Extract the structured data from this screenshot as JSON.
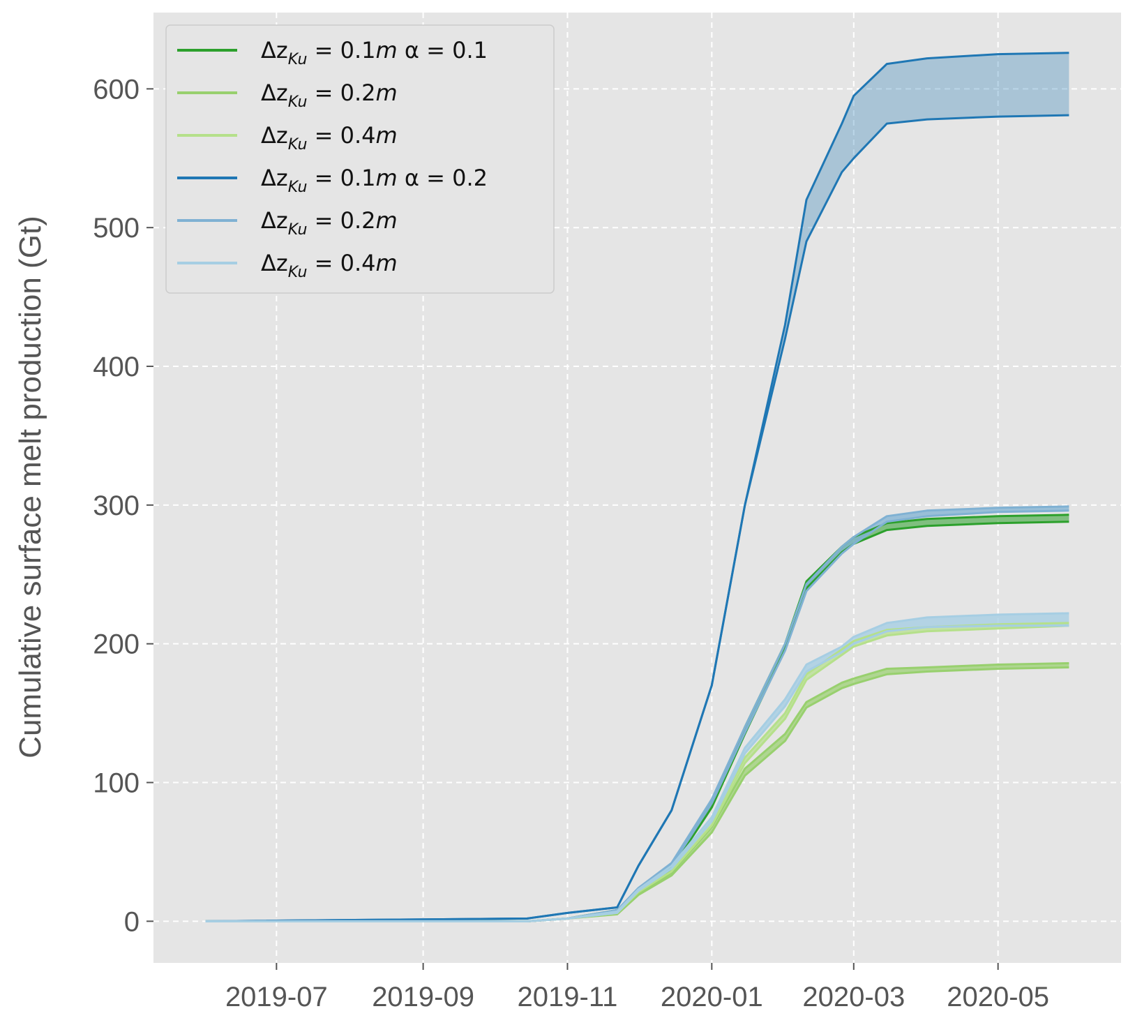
{
  "chart_data": {
    "type": "line",
    "title": "",
    "xlabel": "",
    "ylabel": "Cumulative surface melt production (Gt)",
    "x_ticks": [
      "2019-07",
      "2019-09",
      "2019-11",
      "2020-01",
      "2020-03",
      "2020-05"
    ],
    "y_ticks": [
      "0",
      "100",
      "200",
      "300",
      "400",
      "500",
      "600"
    ],
    "xlim": [
      "2019-05-10",
      "2020-06-22"
    ],
    "ylim": [
      -30,
      655
    ],
    "grid": true,
    "legend": {
      "placement": "top-left",
      "entries": [
        {
          "delta": "Δz",
          "sub": "Ku",
          "eq": " = 0.1",
          "unit": "m",
          "alpha": " α = 0.1",
          "color": "#2ca02c"
        },
        {
          "delta": "Δz",
          "sub": "Ku",
          "eq": " = 0.2",
          "unit": "m",
          "alpha": "",
          "color": "#98d06e"
        },
        {
          "delta": "Δz",
          "sub": "Ku",
          "eq": " = 0.4",
          "unit": "m",
          "alpha": "",
          "color": "#b5e08a"
        },
        {
          "delta": "Δz",
          "sub": "Ku",
          "eq": " = 0.1",
          "unit": "m",
          "alpha": " α = 0.2",
          "color": "#1f77b4"
        },
        {
          "delta": "Δz",
          "sub": "Ku",
          "eq": " = 0.2",
          "unit": "m",
          "alpha": "",
          "color": "#7fb1d3"
        },
        {
          "delta": "Δz",
          "sub": "Ku",
          "eq": " = 0.4",
          "unit": "m",
          "alpha": "",
          "color": "#a6cee3"
        }
      ]
    },
    "series": [
      {
        "color": "#2ca02c",
        "band_opacity": 0.55,
        "x": [
          "2019-06-01",
          "2019-10-15",
          "2019-11-01",
          "2019-11-22",
          "2019-12-01",
          "2019-12-15",
          "2020-01-01",
          "2020-01-15",
          "2020-02-01",
          "2020-02-10",
          "2020-02-25",
          "2020-03-01",
          "2020-03-15",
          "2020-04-01",
          "2020-05-01",
          "2020-05-31"
        ],
        "upper": [
          0,
          0,
          2,
          8,
          22,
          40,
          85,
          140,
          200,
          245,
          270,
          277,
          287,
          290,
          292,
          293
        ],
        "lower": [
          0,
          0,
          2,
          7,
          20,
          38,
          82,
          135,
          196,
          240,
          266,
          272,
          282,
          285,
          287,
          288
        ]
      },
      {
        "color": "#98d06e",
        "band_opacity": 0.7,
        "x": [
          "2019-06-01",
          "2019-10-15",
          "2019-11-01",
          "2019-11-22",
          "2019-12-01",
          "2019-12-15",
          "2020-01-01",
          "2020-01-15",
          "2020-02-01",
          "2020-02-10",
          "2020-02-25",
          "2020-03-01",
          "2020-03-15",
          "2020-04-01",
          "2020-05-01",
          "2020-05-31"
        ],
        "upper": [
          0,
          0,
          2,
          6,
          20,
          35,
          68,
          110,
          135,
          158,
          172,
          175,
          182,
          183,
          185,
          186
        ],
        "lower": [
          0,
          0,
          2,
          5,
          19,
          33,
          64,
          105,
          130,
          154,
          168,
          171,
          178,
          180,
          182,
          183
        ]
      },
      {
        "color": "#b5e08a",
        "band_opacity": 0.7,
        "x": [
          "2019-06-01",
          "2019-10-15",
          "2019-11-01",
          "2019-11-22",
          "2019-12-01",
          "2019-12-15",
          "2020-01-01",
          "2020-01-15",
          "2020-02-01",
          "2020-02-10",
          "2020-02-25",
          "2020-03-01",
          "2020-03-15",
          "2020-04-01",
          "2020-05-01",
          "2020-05-31"
        ],
        "upper": [
          0,
          0,
          2,
          6,
          22,
          38,
          72,
          118,
          150,
          178,
          196,
          202,
          210,
          212,
          214,
          215
        ],
        "lower": [
          0,
          0,
          2,
          6,
          21,
          36,
          69,
          114,
          146,
          174,
          192,
          198,
          206,
          209,
          211,
          213
        ]
      },
      {
        "color": "#1f77b4",
        "band_opacity": 0.3,
        "x": [
          "2019-06-01",
          "2019-10-15",
          "2019-11-01",
          "2019-11-22",
          "2019-12-01",
          "2019-12-15",
          "2020-01-01",
          "2020-01-15",
          "2020-02-01",
          "2020-02-10",
          "2020-02-25",
          "2020-03-01",
          "2020-03-15",
          "2020-04-01",
          "2020-05-01",
          "2020-05-31"
        ],
        "upper": [
          0,
          2,
          6,
          10,
          40,
          80,
          170,
          300,
          430,
          520,
          575,
          595,
          618,
          622,
          625,
          626
        ],
        "lower": [
          0,
          2,
          6,
          10,
          40,
          80,
          170,
          300,
          420,
          490,
          540,
          550,
          575,
          578,
          580,
          581
        ]
      },
      {
        "color": "#7fb1d3",
        "band_opacity": 0.75,
        "x": [
          "2019-06-01",
          "2019-10-15",
          "2019-11-01",
          "2019-11-22",
          "2019-12-01",
          "2019-12-15",
          "2020-01-01",
          "2020-01-15",
          "2020-02-01",
          "2020-02-10",
          "2020-02-25",
          "2020-03-01",
          "2020-03-15",
          "2020-04-01",
          "2020-05-01",
          "2020-05-31"
        ],
        "upper": [
          0,
          0,
          2,
          8,
          24,
          42,
          88,
          140,
          200,
          243,
          270,
          277,
          292,
          296,
          298,
          299
        ],
        "lower": [
          0,
          0,
          2,
          7,
          23,
          40,
          85,
          136,
          195,
          238,
          265,
          272,
          288,
          292,
          295,
          296
        ]
      },
      {
        "color": "#a6cee3",
        "band_opacity": 0.8,
        "x": [
          "2019-06-01",
          "2019-10-15",
          "2019-11-01",
          "2019-11-22",
          "2019-12-01",
          "2019-12-15",
          "2020-01-01",
          "2020-01-15",
          "2020-02-01",
          "2020-02-10",
          "2020-02-25",
          "2020-03-01",
          "2020-03-15",
          "2020-04-01",
          "2020-05-01",
          "2020-05-31"
        ],
        "upper": [
          0,
          0,
          2,
          7,
          23,
          40,
          75,
          125,
          160,
          185,
          198,
          205,
          215,
          219,
          221,
          222
        ],
        "lower": [
          0,
          0,
          2,
          6,
          22,
          38,
          72,
          121,
          155,
          180,
          194,
          200,
          209,
          212,
          213,
          213
        ]
      }
    ]
  }
}
